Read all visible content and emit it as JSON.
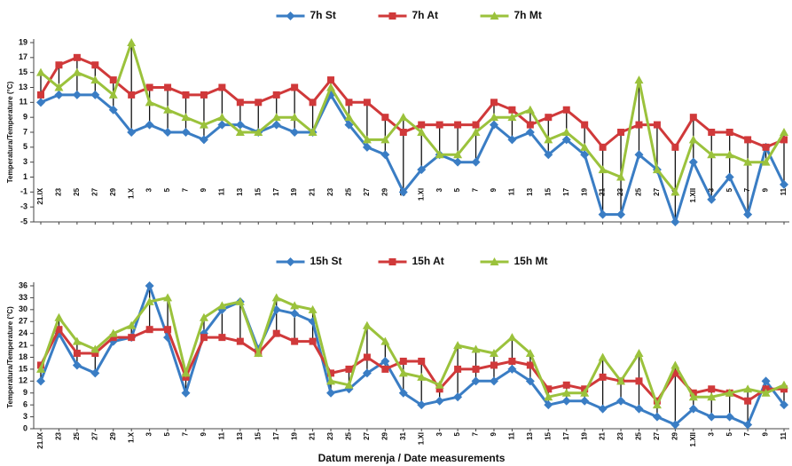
{
  "chart_data": [
    {
      "type": "line",
      "ylabel": "Temperatura/Temperature (°C)",
      "categories": [
        "21.IX",
        "23",
        "25",
        "27",
        "29",
        "1.X",
        "3",
        "5",
        "7",
        "9",
        "11",
        "13",
        "15",
        "17",
        "19",
        "21",
        "23",
        "25",
        "27",
        "29",
        "31",
        "1.XI",
        "3",
        "5",
        "7",
        "9",
        "11",
        "13",
        "15",
        "17",
        "19",
        "21",
        "23",
        "25",
        "27",
        "29",
        "1.XII",
        "3",
        "5",
        "7",
        "9",
        "11"
      ],
      "ylim": [
        -5,
        19
      ],
      "yticks": [
        -5,
        -3,
        -1,
        1,
        3,
        5,
        7,
        9,
        11,
        13,
        15,
        17,
        19
      ],
      "grid": false,
      "high_low_lines": true,
      "series": [
        {
          "name": "7h St",
          "color": "#3a7dc4",
          "marker": "diamond",
          "values": [
            11,
            12,
            12,
            12,
            10,
            7,
            8,
            7,
            7,
            6,
            8,
            8,
            7,
            8,
            7,
            7,
            12,
            8,
            5,
            4,
            -1,
            2,
            4,
            3,
            3,
            8,
            6,
            7,
            4,
            6,
            4,
            -4,
            -4,
            4,
            2,
            -5,
            3,
            -2,
            1,
            -4,
            5,
            0
          ]
        },
        {
          "name": "7h At",
          "color": "#d0393a",
          "marker": "square",
          "values": [
            12,
            16,
            17,
            16,
            14,
            12,
            13,
            13,
            12,
            12,
            13,
            11,
            11,
            12,
            13,
            11,
            14,
            11,
            11,
            9,
            7,
            8,
            8,
            8,
            8,
            11,
            10,
            8,
            9,
            10,
            8,
            5,
            7,
            8,
            8,
            5,
            9,
            7,
            7,
            6,
            5,
            6
          ]
        },
        {
          "name": "7h Mt",
          "color": "#9bc23c",
          "marker": "triangle",
          "values": [
            15,
            13,
            15,
            14,
            12,
            19,
            11,
            10,
            9,
            8,
            9,
            7,
            7,
            9,
            9,
            7,
            13,
            9,
            6,
            6,
            9,
            7,
            4,
            4,
            7,
            9,
            9,
            10,
            6,
            7,
            5,
            2,
            1,
            14,
            2,
            -1,
            6,
            4,
            4,
            3,
            3,
            7
          ]
        }
      ]
    },
    {
      "type": "line",
      "ylabel": "Temperatura/Temperature (°C)",
      "xlabel": "Datum merenja / Date measurements",
      "categories": [
        "21.IX",
        "23",
        "25",
        "27",
        "29",
        "1.X",
        "3",
        "5",
        "7",
        "9",
        "11",
        "13",
        "15",
        "17",
        "19",
        "21",
        "23",
        "25",
        "27",
        "29",
        "31",
        "1.XI",
        "3",
        "5",
        "7",
        "9",
        "11",
        "13",
        "15",
        "17",
        "19",
        "21",
        "23",
        "25",
        "27",
        "29",
        "1.XII",
        "3",
        "5",
        "7",
        "9",
        "11"
      ],
      "ylim": [
        0,
        36
      ],
      "yticks": [
        0,
        3,
        6,
        9,
        12,
        15,
        18,
        21,
        24,
        27,
        30,
        33,
        36
      ],
      "grid": false,
      "high_low_lines": true,
      "series": [
        {
          "name": "15h St",
          "color": "#3a7dc4",
          "marker": "diamond",
          "values": [
            12,
            24,
            16,
            14,
            22,
            23,
            36,
            23,
            9,
            24,
            30,
            32,
            20,
            30,
            29,
            27,
            9,
            10,
            14,
            17,
            9,
            6,
            7,
            8,
            12,
            12,
            15,
            12,
            6,
            7,
            7,
            5,
            7,
            5,
            3,
            1,
            5,
            3,
            3,
            1,
            12,
            6
          ]
        },
        {
          "name": "15h At",
          "color": "#d0393a",
          "marker": "square",
          "values": [
            16,
            25,
            19,
            19,
            23,
            23,
            25,
            25,
            13,
            23,
            23,
            22,
            19,
            24,
            22,
            22,
            14,
            15,
            18,
            15,
            17,
            17,
            10,
            15,
            15,
            16,
            17,
            16,
            10,
            11,
            10,
            13,
            12,
            12,
            7,
            14,
            9,
            10,
            9,
            7,
            10,
            10
          ]
        },
        {
          "name": "15h Mt",
          "color": "#9bc23c",
          "marker": "triangle",
          "values": [
            15,
            28,
            22,
            20,
            24,
            26,
            32,
            33,
            14,
            28,
            31,
            32,
            19,
            33,
            31,
            30,
            12,
            11,
            26,
            22,
            14,
            13,
            11,
            21,
            20,
            19,
            23,
            19,
            8,
            9,
            9,
            18,
            12,
            19,
            6,
            16,
            8,
            8,
            9,
            10,
            9,
            11
          ]
        }
      ]
    }
  ]
}
